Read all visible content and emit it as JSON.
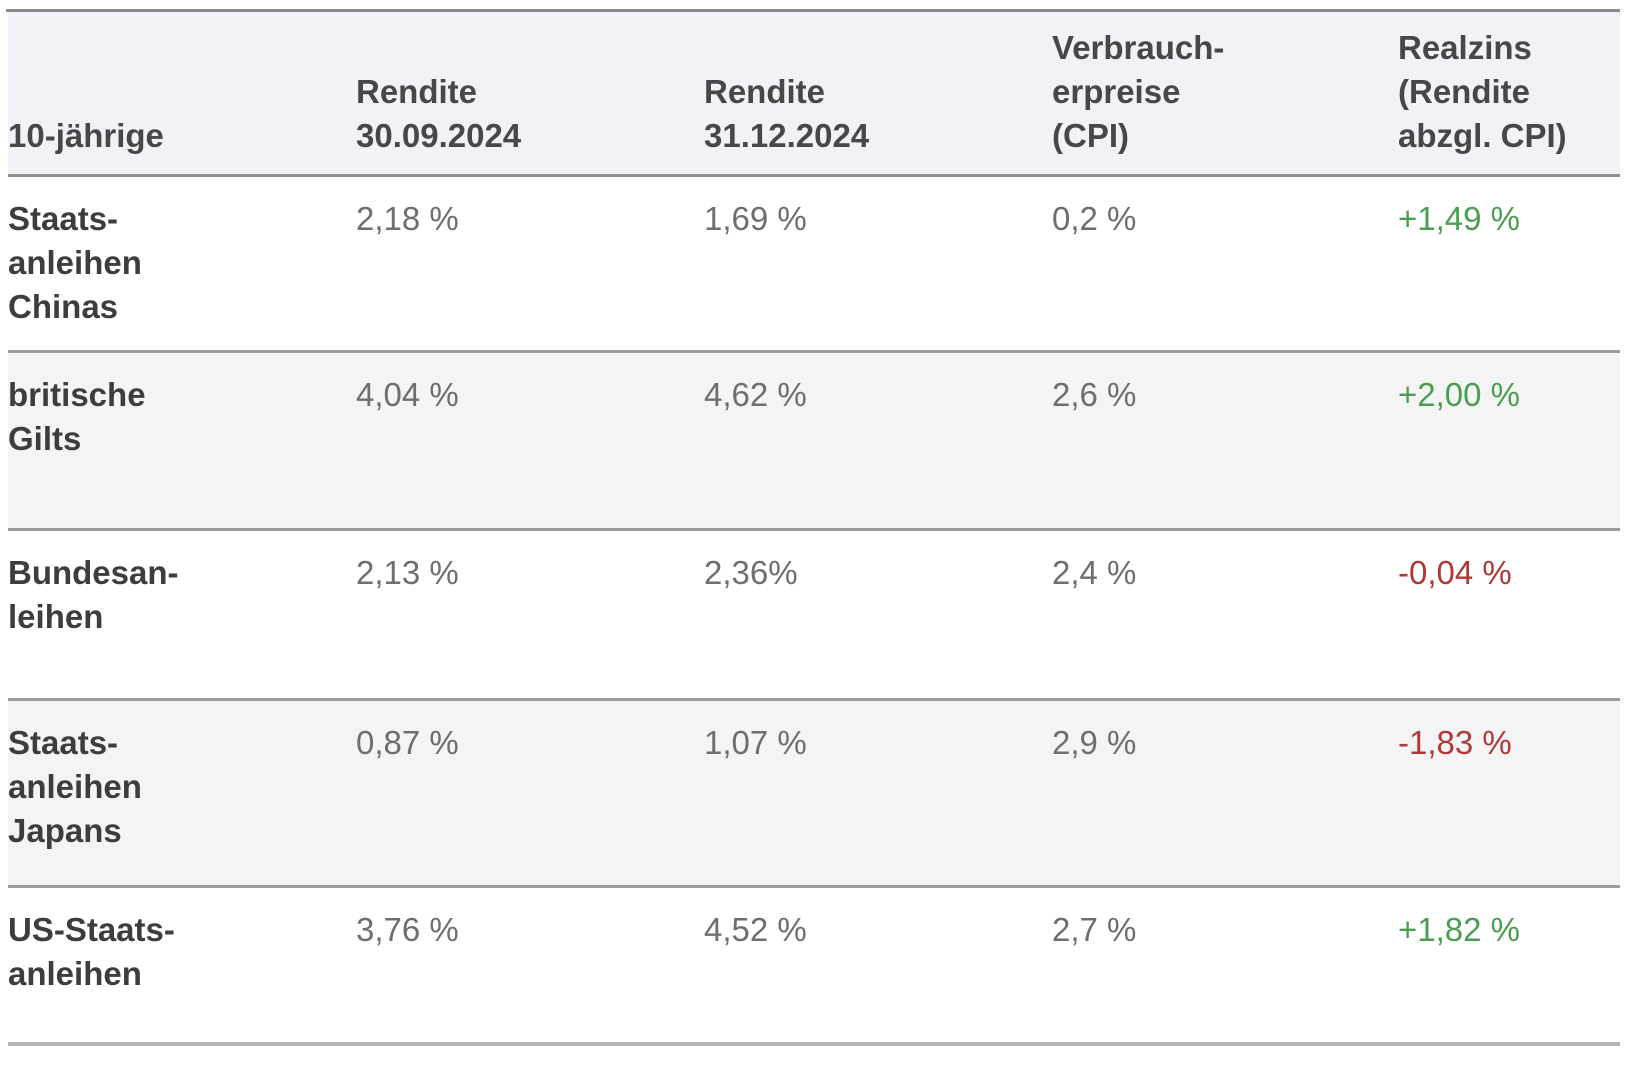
{
  "colors": {
    "positive": "#4a9e50",
    "negative": "#ae3939",
    "header_background": "#f1f2f7",
    "alternate_row_background": "#f4f4f4",
    "label_text": "#3d3d3d",
    "value_text": "#6e6e6e"
  },
  "chart_data": {
    "type": "table",
    "title": "",
    "columns": [
      "10-jährige",
      "Rendite\n30.09.2024",
      "Rendite\n31.12.2024",
      "Verbrauch-\nerpreise\n(CPI)",
      "Realzins\n(Rendite\nabzgl. CPI)"
    ],
    "rows": [
      {
        "label": "Staats-\nanleihen\nChinas",
        "values": [
          "2,18 %",
          "1,69 %",
          "0,2 %",
          "+1,49 %"
        ]
      },
      {
        "label": "britische\nGilts",
        "values": [
          "4,04 %",
          "4,62 %",
          "2,6 %",
          "+2,00 %"
        ]
      },
      {
        "label": "Bundesan-\nleihen",
        "values": [
          "2,13 %",
          "2,36%",
          "2,4 %",
          "-0,04 %"
        ]
      },
      {
        "label": "Staats-\nanleihen\nJapans",
        "values": [
          "0,87 %",
          "1,07 %",
          "2,9 %",
          "-1,83 %"
        ]
      },
      {
        "label": "US-Staats-\nanleihen",
        "values": [
          "3,76 %",
          "4,52 %",
          "2,7 %",
          "+1,82 %"
        ]
      }
    ]
  }
}
